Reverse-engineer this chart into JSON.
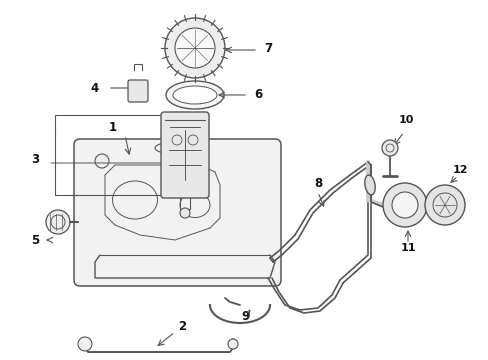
{
  "bg_color": "#ffffff",
  "line_color": "#555555",
  "label_color": "#111111",
  "figw": 4.89,
  "figh": 3.6,
  "dpi": 100
}
